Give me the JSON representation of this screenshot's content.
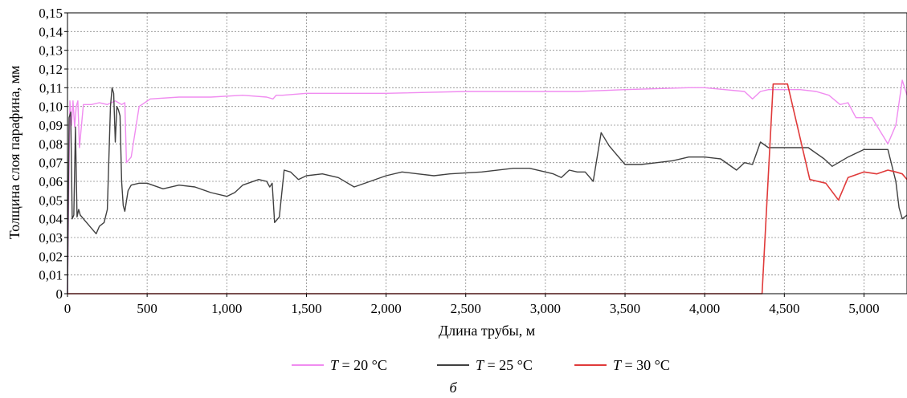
{
  "chart_data": {
    "type": "line",
    "xlabel": "Длина трубы, м",
    "ylabel": "Толщина слоя парафина, мм",
    "xlim": [
      0,
      5270
    ],
    "ylim": [
      0,
      0.15
    ],
    "grid": true,
    "legend_position": "bottom",
    "caption": "б",
    "x_ticks": [
      {
        "value": 0,
        "label": "0"
      },
      {
        "value": 500,
        "label": "500"
      },
      {
        "value": 1000,
        "label": "1,000"
      },
      {
        "value": 1500,
        "label": "1,500"
      },
      {
        "value": 2000,
        "label": "2,000"
      },
      {
        "value": 2500,
        "label": "2,500"
      },
      {
        "value": 3000,
        "label": "3,000"
      },
      {
        "value": 3500,
        "label": "3,500"
      },
      {
        "value": 4000,
        "label": "4,000"
      },
      {
        "value": 4500,
        "label": "4,500"
      },
      {
        "value": 5000,
        "label": "5,000"
      }
    ],
    "y_ticks": [
      {
        "value": 0,
        "label": "0"
      },
      {
        "value": 0.01,
        "label": "0,01"
      },
      {
        "value": 0.02,
        "label": "0,02"
      },
      {
        "value": 0.03,
        "label": "0,03"
      },
      {
        "value": 0.04,
        "label": "0,04"
      },
      {
        "value": 0.05,
        "label": "0,05"
      },
      {
        "value": 0.06,
        "label": "0,06"
      },
      {
        "value": 0.07,
        "label": "0,07"
      },
      {
        "value": 0.08,
        "label": "0,08"
      },
      {
        "value": 0.09,
        "label": "0,09"
      },
      {
        "value": 0.1,
        "label": "0,10"
      },
      {
        "value": 0.11,
        "label": "0,11"
      },
      {
        "value": 0.12,
        "label": "0,12"
      },
      {
        "value": 0.13,
        "label": "0,13"
      },
      {
        "value": 0.14,
        "label": "0,14"
      },
      {
        "value": 0.15,
        "label": "0,15"
      }
    ],
    "series": [
      {
        "name": "T = 20 °C",
        "name_italic": "T",
        "name_rest": " = 20 °C",
        "color": "#f08cf0",
        "x": [
          0,
          15,
          25,
          35,
          45,
          55,
          65,
          75,
          100,
          150,
          200,
          250,
          300,
          340,
          360,
          370,
          400,
          450,
          520,
          700,
          900,
          1100,
          1250,
          1290,
          1310,
          1350,
          1500,
          2000,
          2500,
          2800,
          3000,
          3200,
          3500,
          3900,
          4000,
          4250,
          4300,
          4350,
          4400,
          4600,
          4700,
          4780,
          4850,
          4900,
          4950,
          5050,
          5150,
          5200,
          5240,
          5270
        ],
        "y": [
          0.0,
          0.103,
          0.09,
          0.103,
          0.089,
          0.1,
          0.103,
          0.078,
          0.101,
          0.101,
          0.102,
          0.101,
          0.103,
          0.101,
          0.102,
          0.07,
          0.073,
          0.1,
          0.104,
          0.105,
          0.105,
          0.106,
          0.105,
          0.104,
          0.106,
          0.106,
          0.107,
          0.107,
          0.108,
          0.108,
          0.108,
          0.108,
          0.109,
          0.11,
          0.11,
          0.108,
          0.104,
          0.108,
          0.109,
          0.109,
          0.108,
          0.106,
          0.101,
          0.102,
          0.094,
          0.094,
          0.08,
          0.09,
          0.114,
          0.106
        ]
      },
      {
        "name": "T = 25 °C",
        "name_italic": "T",
        "name_rest": " = 25 °C",
        "color": "#404040",
        "x": [
          0,
          10,
          20,
          30,
          40,
          50,
          60,
          70,
          80,
          100,
          150,
          180,
          200,
          230,
          250,
          270,
          280,
          290,
          300,
          310,
          320,
          330,
          340,
          350,
          360,
          380,
          400,
          450,
          500,
          600,
          700,
          800,
          900,
          1000,
          1050,
          1100,
          1200,
          1250,
          1270,
          1285,
          1300,
          1310,
          1330,
          1360,
          1400,
          1450,
          1500,
          1600,
          1700,
          1800,
          1900,
          2000,
          2100,
          2200,
          2300,
          2400,
          2600,
          2800,
          2900,
          3000,
          3050,
          3100,
          3150,
          3200,
          3250,
          3300,
          3350,
          3400,
          3500,
          3600,
          3700,
          3800,
          3900,
          4000,
          4100,
          4200,
          4250,
          4300,
          4350,
          4400,
          4500,
          4600,
          4650,
          4750,
          4800,
          4900,
          5000,
          5100,
          5150,
          5200,
          5220,
          5240,
          5270
        ],
        "y": [
          0.0,
          0.094,
          0.097,
          0.04,
          0.042,
          0.089,
          0.041,
          0.045,
          0.042,
          0.04,
          0.035,
          0.032,
          0.036,
          0.038,
          0.045,
          0.1,
          0.11,
          0.107,
          0.081,
          0.1,
          0.098,
          0.095,
          0.06,
          0.047,
          0.044,
          0.055,
          0.058,
          0.059,
          0.059,
          0.056,
          0.058,
          0.057,
          0.054,
          0.052,
          0.054,
          0.058,
          0.061,
          0.06,
          0.057,
          0.059,
          0.038,
          0.039,
          0.041,
          0.066,
          0.065,
          0.061,
          0.063,
          0.064,
          0.062,
          0.057,
          0.06,
          0.063,
          0.065,
          0.064,
          0.063,
          0.064,
          0.065,
          0.067,
          0.067,
          0.065,
          0.064,
          0.062,
          0.066,
          0.065,
          0.065,
          0.06,
          0.086,
          0.079,
          0.069,
          0.069,
          0.07,
          0.071,
          0.073,
          0.073,
          0.072,
          0.066,
          0.07,
          0.069,
          0.081,
          0.078,
          0.078,
          0.078,
          0.078,
          0.072,
          0.068,
          0.073,
          0.077,
          0.077,
          0.077,
          0.06,
          0.046,
          0.04,
          0.042
        ]
      },
      {
        "name": "T = 30 °C",
        "name_italic": "T",
        "name_rest": " = 30 °C",
        "color": "#e03a3a",
        "x": [
          0,
          4360,
          4430,
          4480,
          4520,
          4660,
          4760,
          4840,
          4900,
          5000,
          5080,
          5150,
          5200,
          5240,
          5270
        ],
        "y": [
          0.0,
          0.0,
          0.112,
          0.112,
          0.112,
          0.061,
          0.059,
          0.05,
          0.062,
          0.065,
          0.064,
          0.066,
          0.065,
          0.064,
          0.061
        ]
      }
    ]
  }
}
